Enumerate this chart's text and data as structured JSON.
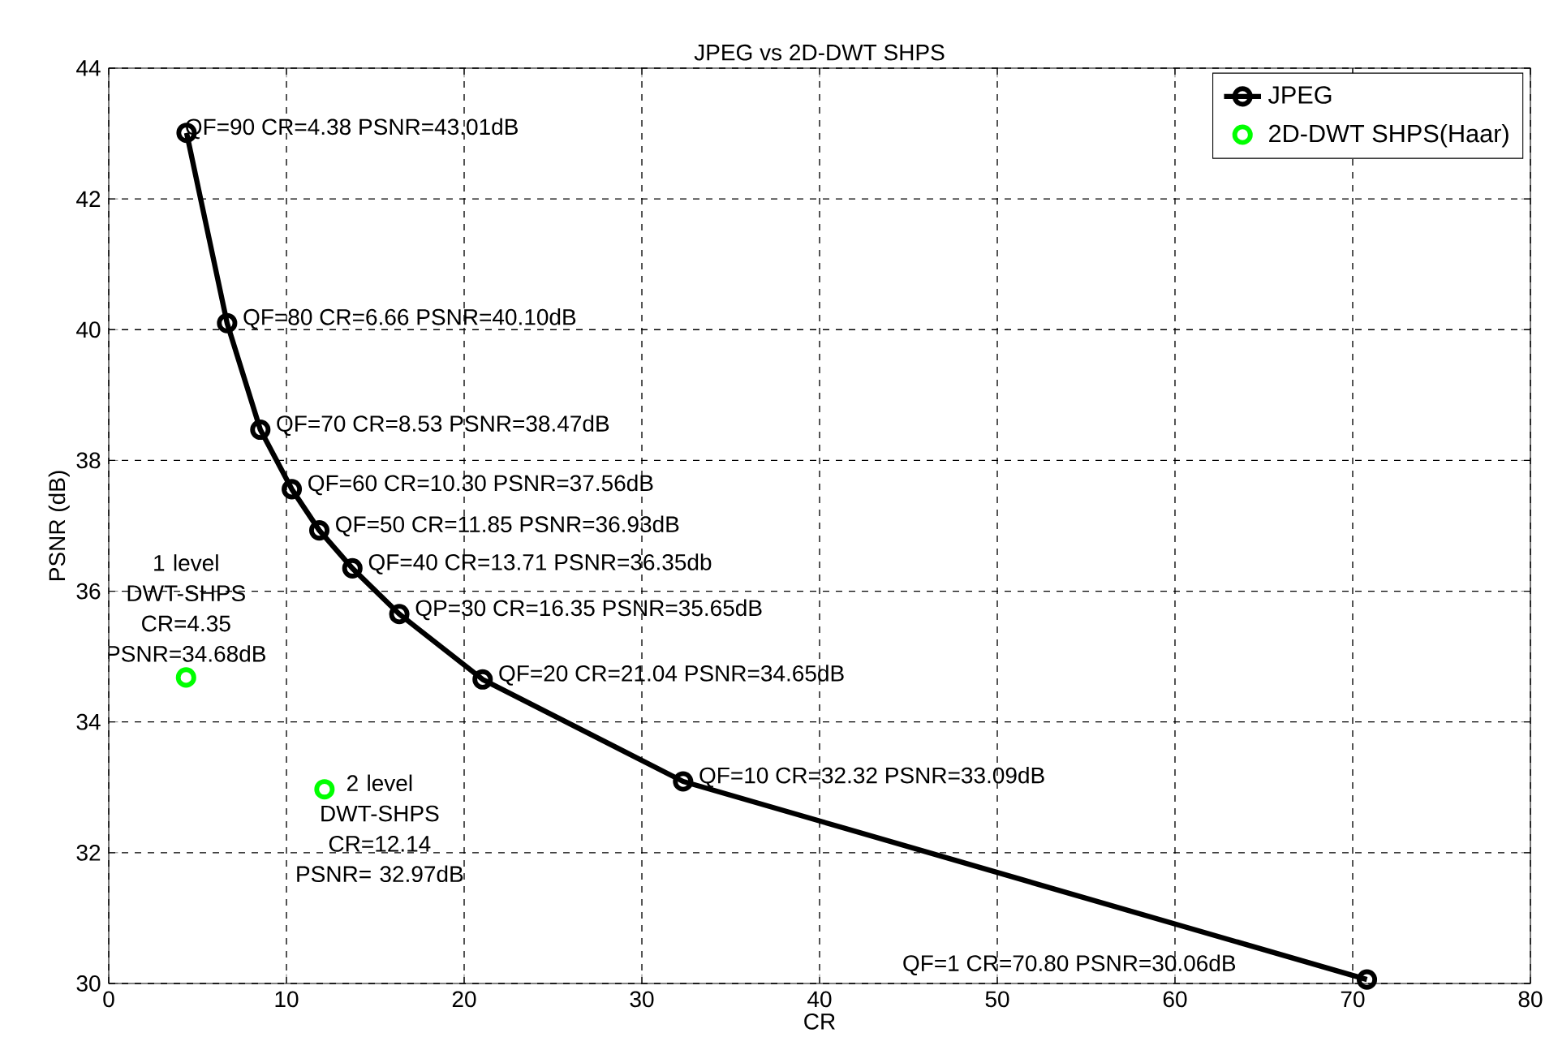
{
  "chart_data": {
    "type": "line",
    "title": "JPEG vs 2D-DWT SHPS",
    "xlabel": "CR",
    "ylabel": "PSNR (dB)",
    "xlim": [
      0,
      80
    ],
    "xticks": [
      0,
      10,
      20,
      30,
      40,
      50,
      60,
      70,
      80
    ],
    "ylim": [
      30,
      44
    ],
    "yticks": [
      30,
      32,
      34,
      36,
      38,
      40,
      42,
      44
    ],
    "grid": true,
    "legend": "top right",
    "marker": "circle",
    "series": [
      {
        "name": "JPEG",
        "color": "#000000",
        "x": [
          4.38,
          6.66,
          8.53,
          10.3,
          11.85,
          13.71,
          16.35,
          21.04,
          32.32,
          70.8
        ],
        "values": [
          43.01,
          40.1,
          38.47,
          37.56,
          36.93,
          36.35,
          35.65,
          34.65,
          33.09,
          30.06
        ]
      },
      {
        "name": "2D-DWT SHPS(Haar)",
        "type": "scatter",
        "color": "#00ff00",
        "x": [
          4.35,
          12.14
        ],
        "values": [
          34.68,
          32.97
        ]
      }
    ],
    "annotations": [
      {
        "text": "QF=90 CR=4.38 PSNR=43.01dB",
        "x": 4.38,
        "y": 43.01
      },
      {
        "text": "QF=80 CR=6.66 PSNR=40.10dB",
        "x": 6.66,
        "y": 40.1
      },
      {
        "text": "QF=70 CR=8.53 PSNR=38.47dB",
        "x": 8.53,
        "y": 38.47
      },
      {
        "text": "QF=60 CR=10.30 PSNR=37.56dB",
        "x": 10.3,
        "y": 37.56
      },
      {
        "text": "QF=50 CR=11.85 PSNR=36.93dB",
        "x": 11.85,
        "y": 36.93
      },
      {
        "text": "QF=40 CR=13.71 PSNR=36.35db",
        "x": 13.71,
        "y": 36.35
      },
      {
        "text": "QP=30 CR=16.35 PSNR=35.65dB",
        "x": 16.35,
        "y": 35.65
      },
      {
        "text": "QF=20 CR=21.04 PSNR=34.65dB",
        "x": 21.04,
        "y": 34.65
      },
      {
        "text": "QF=10 CR=32.32 PSNR=33.09dB",
        "x": 32.32,
        "y": 33.09
      },
      "QF=1 CR=70.80 PSNR=30.06dB",
      {
        "text": "1 level DWT-SHPS CR=4.35 PSNR=34.68dB",
        "x": 4.35,
        "y": 34.68
      },
      {
        "text": "2 level DWT-SHPS CR=12.14 PSNR= 32.97dB",
        "x": 12.14,
        "y": 32.97
      }
    ]
  }
}
